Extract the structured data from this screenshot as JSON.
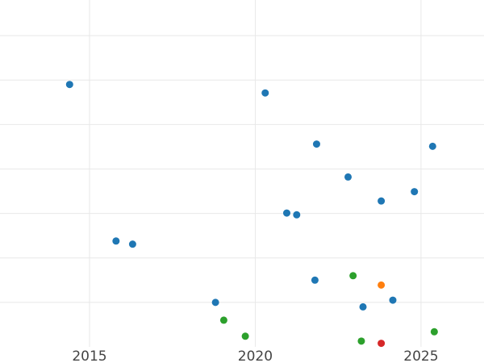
{
  "chart_data": {
    "type": "scatter",
    "title": "",
    "xlabel": "",
    "ylabel": "",
    "xlim": [
      2012.3,
      2026.9
    ],
    "ylim": [
      0,
      7.8
    ],
    "x_ticks": [
      2015,
      2020,
      2025
    ],
    "y_gridlines": [
      1,
      2,
      3,
      4,
      5,
      6,
      7
    ],
    "y_tick_labels_visible": false,
    "grid": true,
    "legend": "none",
    "series": [
      {
        "color": "#1f77b4",
        "points": [
          {
            "x": 2014.4,
            "y": 5.9
          },
          {
            "x": 2020.3,
            "y": 5.71
          },
          {
            "x": 2021.85,
            "y": 4.56
          },
          {
            "x": 2025.35,
            "y": 4.51
          },
          {
            "x": 2022.8,
            "y": 3.82
          },
          {
            "x": 2024.8,
            "y": 3.49
          },
          {
            "x": 2023.8,
            "y": 3.28
          },
          {
            "x": 2020.95,
            "y": 3.01
          },
          {
            "x": 2021.25,
            "y": 2.97
          },
          {
            "x": 2015.8,
            "y": 2.38
          },
          {
            "x": 2016.3,
            "y": 2.31
          },
          {
            "x": 2021.8,
            "y": 1.5
          },
          {
            "x": 2018.8,
            "y": 1.0
          },
          {
            "x": 2024.15,
            "y": 1.05
          },
          {
            "x": 2023.25,
            "y": 0.9
          }
        ]
      },
      {
        "color": "#2ca02c",
        "points": [
          {
            "x": 2022.95,
            "y": 1.6
          },
          {
            "x": 2019.05,
            "y": 0.6
          },
          {
            "x": 2019.7,
            "y": 0.24
          },
          {
            "x": 2023.2,
            "y": 0.13
          },
          {
            "x": 2025.4,
            "y": 0.34
          }
        ]
      },
      {
        "color": "#ff7f0e",
        "points": [
          {
            "x": 2023.8,
            "y": 1.39
          }
        ]
      },
      {
        "color": "#d62728",
        "points": [
          {
            "x": 2023.8,
            "y": 0.08
          }
        ]
      }
    ]
  }
}
